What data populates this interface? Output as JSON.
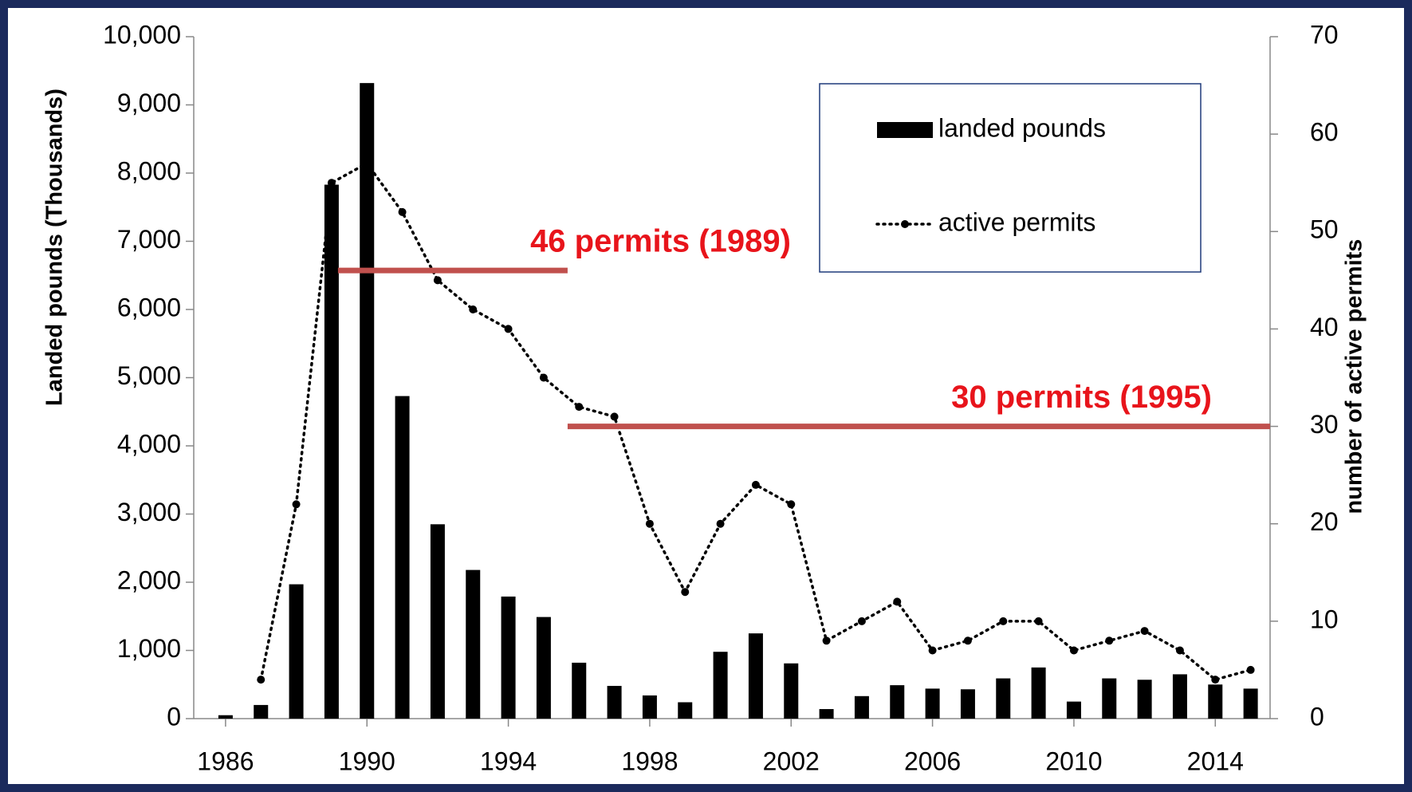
{
  "chart_data": {
    "type": "bar",
    "x": [
      1986,
      1987,
      1988,
      1989,
      1990,
      1991,
      1992,
      1993,
      1994,
      1995,
      1996,
      1997,
      1998,
      1999,
      2000,
      2001,
      2002,
      2003,
      2004,
      2005,
      2006,
      2007,
      2008,
      2009,
      2010,
      2011,
      2012,
      2013,
      2014,
      2015
    ],
    "xlim": [
      1985.1,
      2015.55
    ],
    "xticks": [
      1986,
      1990,
      1994,
      1998,
      2002,
      2006,
      2010,
      2014
    ],
    "series": [
      {
        "name": "landed pounds",
        "type": "bar",
        "color": "#000000",
        "values": [
          50,
          200,
          1970,
          7830,
          9320,
          4730,
          2850,
          2180,
          1790,
          1490,
          820,
          480,
          340,
          240,
          980,
          1250,
          810,
          140,
          330,
          490,
          440,
          430,
          590,
          750,
          250,
          590,
          570,
          650,
          500,
          440
        ]
      },
      {
        "name": "active permits",
        "type": "line",
        "axis": "y2",
        "color": "#000000",
        "values": [
          null,
          4,
          22,
          55,
          57,
          52,
          45,
          42,
          40,
          35,
          32,
          31,
          20,
          13,
          20,
          24,
          22,
          8,
          10,
          12,
          7,
          8,
          10,
          10,
          7,
          8,
          9,
          7,
          4,
          5
        ]
      }
    ],
    "ylabel": "Landed pounds (Thousands)",
    "ylim": [
      0,
      10000
    ],
    "yticks": [
      0,
      {
        "value": 1000,
        "label": "1,000"
      },
      {
        "value": 2000,
        "label": "2,000"
      },
      {
        "value": 3000,
        "label": "3,000"
      },
      {
        "value": 4000,
        "label": "4,000"
      },
      {
        "value": 5000,
        "label": "5,000"
      },
      {
        "value": 6000,
        "label": "6,000"
      },
      {
        "value": 7000,
        "label": "7,000"
      },
      {
        "value": 8000,
        "label": "8,000"
      },
      {
        "value": 9000,
        "label": "9,000"
      },
      {
        "value": 10000,
        "label": "10,000"
      }
    ],
    "y2label": "number of active permits",
    "y2lim": [
      0,
      70
    ],
    "y2ticks": [
      0,
      10,
      20,
      30,
      40,
      50,
      60,
      70
    ],
    "annotations": [
      {
        "text": "46 permits (1989)",
        "value": 46,
        "color": "#c0504d"
      },
      {
        "text": "30 permits (1995)",
        "value": 30,
        "color": "#c0504d"
      }
    ],
    "legend": "upper right"
  }
}
